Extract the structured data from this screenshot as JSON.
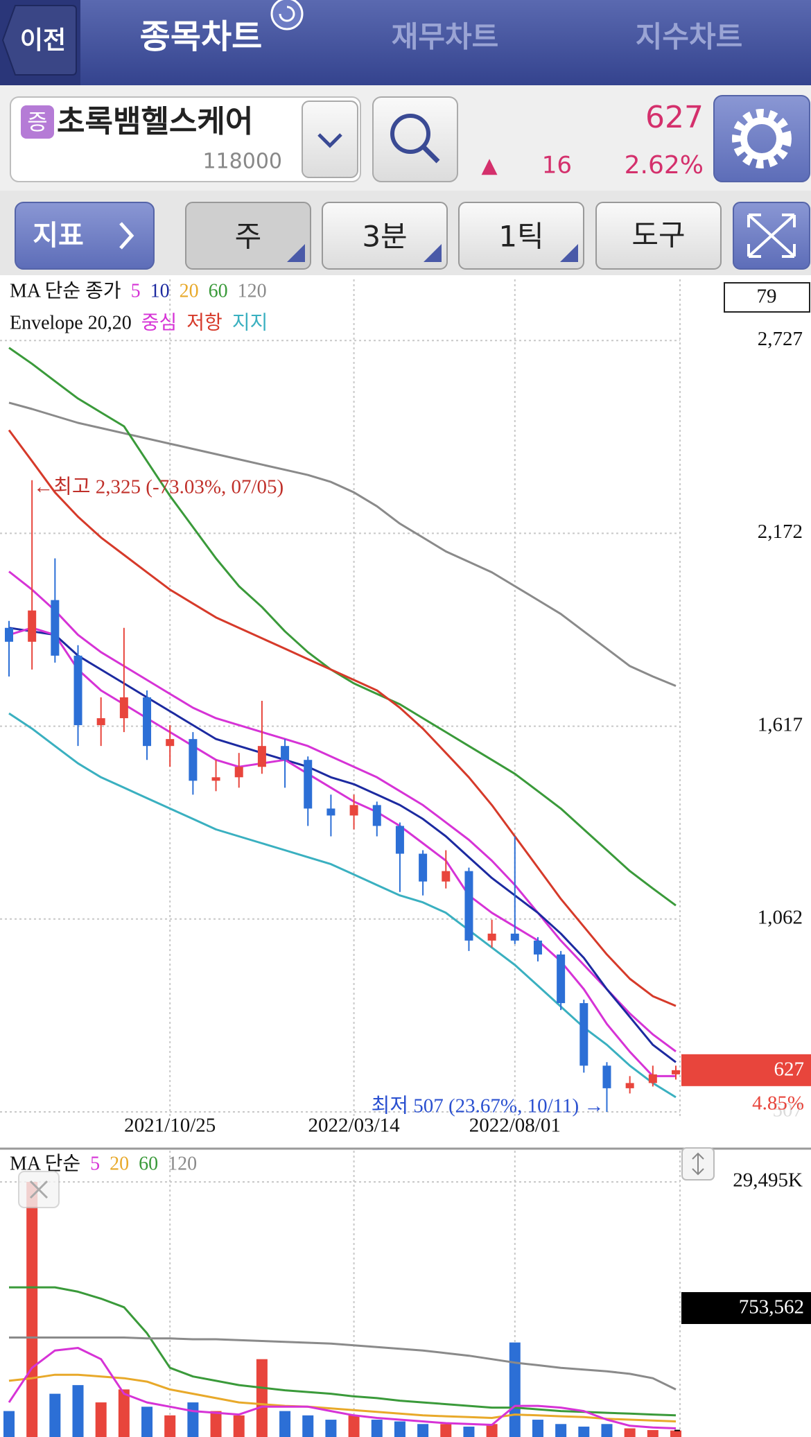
{
  "header": {
    "back": "이전",
    "tabs": [
      "종목차트",
      "재무차트",
      "지수차트"
    ]
  },
  "stock": {
    "badge": "증",
    "name": "초록뱀헬스케어",
    "code": "118000",
    "price": "627",
    "change_sign": "▲",
    "change": "16",
    "change_pct": "2.62%"
  },
  "toolbar": {
    "indicator": "지표",
    "period": "주",
    "minute": "3분",
    "tick": "1틱",
    "tools": "도구"
  },
  "chart_data": [
    {
      "type": "candlestick",
      "legend": {
        "title": "MA 단순 종가",
        "items": [
          {
            "label": "5",
            "color": "#d633d6"
          },
          {
            "label": "10",
            "color": "#1c2aa0"
          },
          {
            "label": "20",
            "color": "#e8a92a"
          },
          {
            "label": "60",
            "color": "#3a9a3a"
          },
          {
            "label": "120",
            "color": "#8a8a8a"
          }
        ]
      },
      "envelope_legend": {
        "title": "Envelope 20,20",
        "items": [
          {
            "label": "중심",
            "color": "#d633d6"
          },
          {
            "label": "저항",
            "color": "#d63a2a"
          },
          {
            "label": "지지",
            "color": "#3ab0c0"
          }
        ]
      },
      "categories": [
        null,
        null,
        null,
        null,
        null,
        null,
        null,
        "2021/10/25",
        null,
        null,
        null,
        null,
        null,
        null,
        null,
        "2022/03/14",
        null,
        null,
        null,
        null,
        null,
        null,
        "2022/08/01",
        null,
        null,
        null,
        null,
        null,
        null,
        null
      ],
      "candles": [
        [
          1900,
          1920,
          1760,
          1860
        ],
        [
          1860,
          2325,
          1780,
          1950
        ],
        [
          1980,
          2100,
          1800,
          1820
        ],
        [
          1820,
          1850,
          1560,
          1620
        ],
        [
          1620,
          1700,
          1560,
          1640
        ],
        [
          1640,
          1900,
          1600,
          1700
        ],
        [
          1700,
          1720,
          1520,
          1560
        ],
        [
          1560,
          1620,
          1500,
          1580
        ],
        [
          1580,
          1600,
          1420,
          1460
        ],
        [
          1460,
          1520,
          1430,
          1470
        ],
        [
          1470,
          1540,
          1440,
          1500
        ],
        [
          1500,
          1690,
          1480,
          1560
        ],
        [
          1560,
          1580,
          1440,
          1520
        ],
        [
          1520,
          1530,
          1330,
          1380
        ],
        [
          1380,
          1420,
          1300,
          1360
        ],
        [
          1360,
          1420,
          1320,
          1390
        ],
        [
          1390,
          1400,
          1300,
          1330
        ],
        [
          1330,
          1340,
          1140,
          1250
        ],
        [
          1250,
          1260,
          1130,
          1170
        ],
        [
          1170,
          1260,
          1150,
          1200
        ],
        [
          1200,
          1210,
          970,
          1000
        ],
        [
          1000,
          1060,
          980,
          1020
        ],
        [
          1020,
          1300,
          990,
          1000
        ],
        [
          1000,
          1010,
          940,
          960
        ],
        [
          960,
          970,
          800,
          820
        ],
        [
          820,
          830,
          620,
          640
        ],
        [
          640,
          650,
          507,
          575
        ],
        [
          575,
          610,
          560,
          590
        ],
        [
          590,
          640,
          580,
          615
        ],
        [
          615,
          640,
          600,
          627
        ]
      ],
      "up_color": "#e8453c",
      "down_color": "#2c6fd6",
      "lines": [
        {
          "color": "#8a8a8a",
          "values": [
            2548,
            2530,
            2510,
            2490,
            2475,
            2460,
            2445,
            2430,
            2415,
            2400,
            2385,
            2370,
            2355,
            2340,
            2320,
            2290,
            2250,
            2200,
            2160,
            2120,
            2090,
            2060,
            2020,
            1980,
            1940,
            1890,
            1840,
            1790,
            1760,
            1733
          ]
        },
        {
          "color": "#3a9a3a",
          "values": [
            2706,
            2660,
            2610,
            2560,
            2520,
            2480,
            2380,
            2280,
            2190,
            2100,
            2020,
            1960,
            1890,
            1830,
            1780,
            1740,
            1710,
            1680,
            1640,
            1600,
            1560,
            1520,
            1480,
            1430,
            1380,
            1320,
            1260,
            1200,
            1150,
            1101
          ]
        },
        {
          "color": "#d63a2a",
          "values": [
            2469,
            2380,
            2290,
            2220,
            2160,
            2110,
            2060,
            2010,
            1970,
            1930,
            1900,
            1870,
            1840,
            1810,
            1780,
            1750,
            1720,
            1670,
            1610,
            1540,
            1470,
            1390,
            1300,
            1210,
            1120,
            1040,
            960,
            890,
            840,
            812
          ]
        },
        {
          "color": "#d633d6",
          "values": [
            2062,
            2010,
            1950,
            1880,
            1830,
            1790,
            1750,
            1710,
            1670,
            1640,
            1620,
            1600,
            1580,
            1560,
            1530,
            1500,
            1470,
            1430,
            1390,
            1340,
            1290,
            1230,
            1160,
            1080,
            1000,
            930,
            860,
            790,
            730,
            681
          ]
        },
        {
          "color": "#3ab0c0",
          "values": [
            1654,
            1610,
            1560,
            1510,
            1470,
            1440,
            1410,
            1380,
            1350,
            1320,
            1300,
            1280,
            1260,
            1240,
            1220,
            1190,
            1160,
            1130,
            1110,
            1080,
            1030,
            980,
            930,
            870,
            810,
            750,
            700,
            640,
            590,
            549
          ]
        },
        {
          "color": "#1c2aa0",
          "values": [
            1900,
            1890,
            1880,
            1820,
            1780,
            1740,
            1700,
            1660,
            1620,
            1580,
            1560,
            1540,
            1520,
            1500,
            1470,
            1450,
            1420,
            1390,
            1350,
            1300,
            1240,
            1180,
            1130,
            1080,
            1020,
            950,
            860,
            780,
            700,
            650
          ]
        },
        {
          "color": "#d633d6",
          "values": [
            1880,
            1900,
            1880,
            1780,
            1720,
            1680,
            1640,
            1600,
            1560,
            1520,
            1500,
            1510,
            1520,
            1480,
            1440,
            1400,
            1370,
            1330,
            1280,
            1230,
            1130,
            1080,
            1040,
            1000,
            940,
            860,
            760,
            680,
            610,
            610
          ]
        }
      ],
      "ylim": [
        495,
        2903
      ],
      "yticks": [
        {
          "value": 2727,
          "label": "2,727"
        },
        {
          "value": 2172,
          "label": "2,172"
        },
        {
          "value": 1617,
          "label": "1,617"
        },
        {
          "value": 1062,
          "label": "1,062"
        },
        507
      ],
      "grid": true,
      "annotations": [
        {
          "text": "←최고 2,325 (-73.03%, 07/05)",
          "color": "#c0302a"
        },
        {
          "text": "최저 507 (23.67%, 10/11) →",
          "color": "#2a50d0"
        }
      ],
      "current_price": 627,
      "current_change": {
        "value": 4.85,
        "label": "4.85%"
      },
      "box_value": 79
    },
    {
      "type": "bar",
      "legend": {
        "title": "MA 단순",
        "items": [
          {
            "label": "5",
            "color": "#d633d6"
          },
          {
            "label": "20",
            "color": "#e8a92a"
          },
          {
            "label": "60",
            "color": "#3a9a3a"
          },
          {
            "label": "120",
            "color": "#8a8a8a"
          }
        ]
      },
      "values": [
        3000,
        29495,
        5000,
        6000,
        4000,
        5500,
        3500,
        2500,
        4000,
        3000,
        2500,
        9000,
        3000,
        2500,
        2000,
        2500,
        2000,
        1800,
        1500,
        1500,
        1200,
        1500,
        10929,
        2000,
        1500,
        1200,
        1500,
        1000,
        800,
        753.562
      ],
      "lines": [
        {
          "color": "#3a9a3a",
          "values": [
            17300,
            17300,
            17300,
            16800,
            16000,
            15000,
            12000,
            8000,
            7000,
            6500,
            6000,
            5700,
            5400,
            5200,
            5000,
            4700,
            4500,
            4200,
            4000,
            3800,
            3600,
            3400,
            3400,
            3200,
            3000,
            2900,
            2800,
            2700,
            2600,
            2500
          ]
        },
        {
          "color": "#8a8a8a",
          "values": [
            11500,
            11500,
            11500,
            11500,
            11500,
            11500,
            11400,
            11400,
            11300,
            11300,
            11200,
            11100,
            11000,
            10900,
            10800,
            10600,
            10400,
            10200,
            10000,
            9700,
            9400,
            9000,
            8600,
            8300,
            8000,
            7800,
            7600,
            7300,
            6800,
            5500
          ]
        },
        {
          "color": "#e8a92a",
          "values": [
            6500,
            6800,
            7200,
            7200,
            7000,
            6800,
            6400,
            5500,
            5000,
            4500,
            4000,
            3800,
            3600,
            3500,
            3300,
            3100,
            2900,
            2700,
            2500,
            2400,
            2300,
            2200,
            2600,
            2500,
            2400,
            2300,
            2100,
            2000,
            1900,
            1800
          ]
        },
        {
          "color": "#d633d6",
          "values": [
            4000,
            8000,
            10000,
            10300,
            9000,
            5000,
            4000,
            3500,
            3000,
            2800,
            2600,
            3500,
            3500,
            3500,
            3000,
            2500,
            2200,
            2000,
            1800,
            1600,
            1500,
            1400,
            3600,
            3600,
            3400,
            3000,
            2000,
            1300,
            1100,
            1000
          ]
        }
      ],
      "ylim": [
        0,
        33100
      ],
      "yticks": [
        {
          "value": 29495,
          "label": "29,495K"
        }
      ],
      "grid": true,
      "current": {
        "value": 753.562,
        "label": "753,562"
      }
    }
  ]
}
